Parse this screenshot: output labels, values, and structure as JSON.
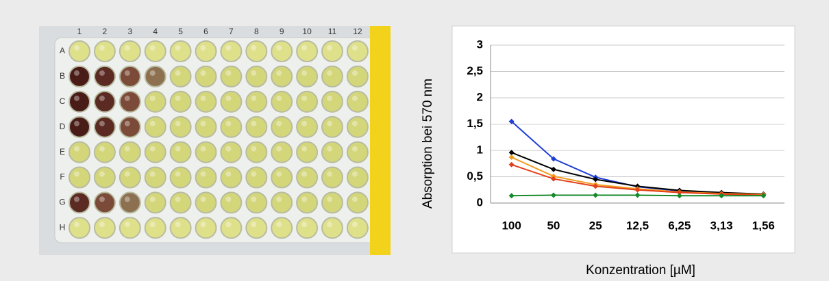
{
  "plate": {
    "columns": [
      "1",
      "2",
      "3",
      "4",
      "5",
      "6",
      "7",
      "8",
      "9",
      "10",
      "11",
      "12"
    ],
    "rows": [
      "A",
      "B",
      "C",
      "D",
      "E",
      "F",
      "G",
      "H"
    ]
  },
  "chart_data": {
    "type": "line",
    "xlabel": "Konzentration [µM]",
    "ylabel": "Absorption bei 570 nm",
    "categories": [
      "100",
      "50",
      "25",
      "12,5",
      "6,25",
      "3,13",
      "1,56"
    ],
    "ylim": [
      0,
      3
    ],
    "yticks": [
      0,
      {
        "value": 0.5,
        "label": "0,5"
      },
      1,
      {
        "value": 1.5,
        "label": "1,5"
      },
      2,
      {
        "value": 2.5,
        "label": "2,5"
      },
      3
    ],
    "grid": true,
    "series": [
      {
        "color": "#1f3fd6",
        "values": [
          1.55,
          0.84,
          0.49,
          0.31,
          0.23,
          0.19,
          0.16
        ]
      },
      {
        "color": "#000000",
        "values": [
          0.96,
          0.64,
          0.45,
          0.32,
          0.24,
          0.2,
          0.17
        ]
      },
      {
        "color": "#f39a1e",
        "values": [
          0.87,
          0.51,
          0.35,
          0.27,
          0.21,
          0.18,
          0.16
        ]
      },
      {
        "color": "#e2401a",
        "values": [
          0.73,
          0.46,
          0.32,
          0.25,
          0.2,
          0.17,
          0.15
        ]
      },
      {
        "color": "#16892a",
        "values": [
          0.14,
          0.15,
          0.15,
          0.15,
          0.14,
          0.14,
          0.14
        ]
      }
    ]
  }
}
